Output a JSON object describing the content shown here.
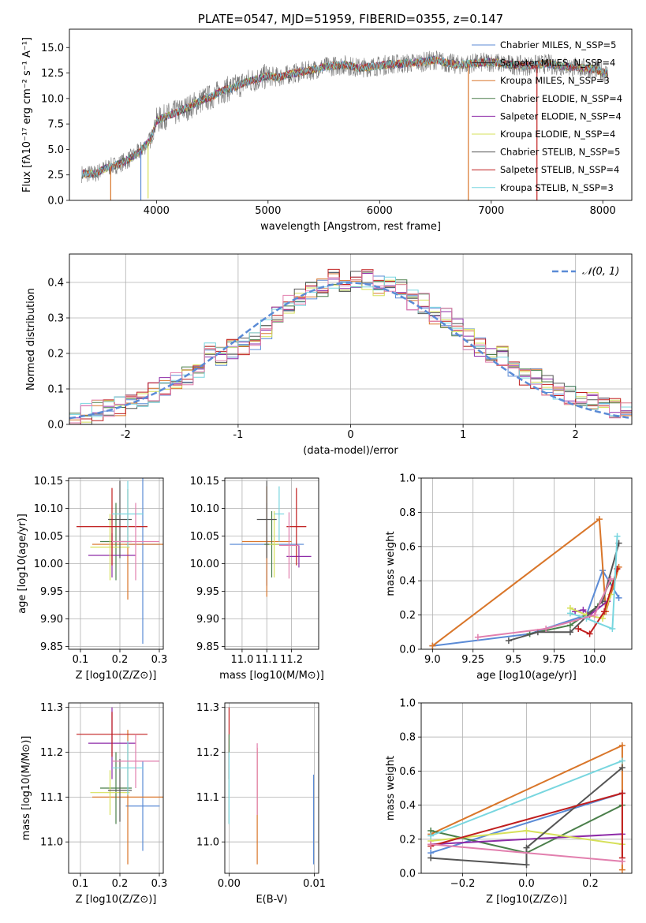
{
  "chart_data": [
    {
      "id": "spectrum",
      "type": "line",
      "title": "PLATE=0547, MJD=51959, FIBERID=0355, z=0.147",
      "xlabel": "wavelength [Angstrom, rest frame]",
      "ylabel": "Flux [fλ10⁻¹⁷ erg cm⁻² s⁻¹ A⁻¹]",
      "xlim": [
        3220,
        8260
      ],
      "ylim": [
        0,
        16.8
      ],
      "xticks": [
        4000,
        5000,
        6000,
        7000,
        8000
      ],
      "yticks": [
        0.0,
        2.5,
        5.0,
        7.5,
        10.0,
        12.5,
        15.0
      ],
      "legend_position": "upper right",
      "legend": [
        "Chabrier MILES, N_SSP=5",
        "Salpeter MILES, N_SSP=4",
        "Kroupa MILES, N_SSP=3",
        "Chabrier ELODIE, N_SSP=4",
        "Salpeter ELODIE, N_SSP=4",
        "Kroupa ELODIE, N_SSP=4",
        "Chabrier STELIB, N_SSP=5",
        "Salpeter STELIB, N_SSP=4",
        "Kroupa STELIB, N_SSP=3"
      ],
      "colors": [
        "#5b8bd6",
        "#2d2d2d",
        "#d9762a",
        "#4a7f4a",
        "#8e2ca8",
        "#d6e05a",
        "#555555",
        "#c01e1e",
        "#78d6df"
      ],
      "data_color": "#777777",
      "continuum": {
        "x": [
          3330,
          3450,
          3550,
          3650,
          3750,
          3850,
          3950,
          4000,
          4100,
          4200,
          4300,
          4400,
          4500,
          4600,
          4700,
          4800,
          4900,
          5000,
          5100,
          5200,
          5300,
          5400,
          5500,
          5600,
          5700,
          5800,
          5900,
          6000,
          6100,
          6200,
          6300,
          6400,
          6500,
          6600,
          6700,
          6800,
          6900,
          7000,
          7100,
          7200,
          7300,
          7400,
          7500,
          7600,
          7700,
          7800,
          7900,
          8000,
          8050
        ],
        "y": [
          2.6,
          2.6,
          3.2,
          3.5,
          4.0,
          4.8,
          6.0,
          7.8,
          8.3,
          8.7,
          9.2,
          9.8,
          10.2,
          10.8,
          11.1,
          11.6,
          11.9,
          12.2,
          12.1,
          12.4,
          12.6,
          12.8,
          13.1,
          13.2,
          13.3,
          13.0,
          13.1,
          13.2,
          13.4,
          13.4,
          13.5,
          13.6,
          13.8,
          13.5,
          13.3,
          13.4,
          13.5,
          13.6,
          13.4,
          13.3,
          13.2,
          13.3,
          13.4,
          13.2,
          13.1,
          13.0,
          12.9,
          12.6,
          12.4
        ]
      },
      "model_dropouts": [
        {
          "x": 3590,
          "y": 0
        },
        {
          "x": 3860,
          "y": 0
        },
        {
          "x": 3925,
          "y": 0.2
        },
        {
          "x": 6795,
          "y": 0
        },
        {
          "x": 7410,
          "y": 0
        }
      ]
    },
    {
      "id": "residuals",
      "type": "step",
      "xlabel": "(data-model)/error",
      "ylabel": "Normed distribution",
      "xlim": [
        -2.5,
        2.5
      ],
      "ylim": [
        0,
        0.48
      ],
      "xticks": [
        -2,
        -1,
        0,
        1,
        2
      ],
      "yticks": [
        0.0,
        0.1,
        0.2,
        0.3,
        0.4
      ],
      "legend": [
        "𝒩(0, 1)"
      ],
      "legend_position": "upper right",
      "gaussian_color": "#5b8bd6",
      "bin_edges": [
        -2.5,
        -2.4,
        -2.3,
        -2.2,
        -2.1,
        -2.0,
        -1.9,
        -1.8,
        -1.7,
        -1.6,
        -1.5,
        -1.4,
        -1.3,
        -1.2,
        -1.1,
        -1.0,
        -0.9,
        -0.8,
        -0.7,
        -0.6,
        -0.5,
        -0.4,
        -0.3,
        -0.2,
        -0.1,
        0.0,
        0.1,
        0.2,
        0.3,
        0.4,
        0.5,
        0.6,
        0.7,
        0.8,
        0.9,
        1.0,
        1.1,
        1.2,
        1.3,
        1.4,
        1.5,
        1.6,
        1.7,
        1.8,
        1.9,
        2.0,
        2.1,
        2.2,
        2.3,
        2.4,
        2.5
      ],
      "base_heights": [
        0.025,
        0.03,
        0.04,
        0.045,
        0.05,
        0.06,
        0.08,
        0.09,
        0.11,
        0.12,
        0.14,
        0.16,
        0.21,
        0.19,
        0.21,
        0.22,
        0.24,
        0.27,
        0.31,
        0.34,
        0.36,
        0.38,
        0.39,
        0.41,
        0.4,
        0.41,
        0.41,
        0.39,
        0.4,
        0.38,
        0.35,
        0.34,
        0.31,
        0.3,
        0.27,
        0.24,
        0.22,
        0.2,
        0.19,
        0.16,
        0.14,
        0.13,
        0.11,
        0.1,
        0.08,
        0.07,
        0.06,
        0.05,
        0.045,
        0.04
      ],
      "series_colors": [
        "#5b8bd6",
        "#d9762a",
        "#4a7f4a",
        "#8e2ca8",
        "#d6e05a",
        "#555555",
        "#c01e1e",
        "#78d6df",
        "#e27fae"
      ]
    },
    {
      "id": "age-vs-Z",
      "type": "errorbar",
      "xlabel": "Z [log10(Z/Z⊙)]",
      "ylabel": "age  [log10(age/yr)]",
      "xlim": [
        0.07,
        0.31
      ],
      "ylim": [
        9.845,
        10.155
      ],
      "xticks": [
        0.1,
        0.2,
        0.3
      ],
      "yticks": [
        9.85,
        9.9,
        9.95,
        10.0,
        10.05,
        10.1,
        10.15
      ],
      "points": [
        {
          "x": 0.258,
          "y": 10.035,
          "xerr": 0.043,
          "yerr": 0.18,
          "color": "#5b8bd6"
        },
        {
          "x": 0.22,
          "y": 10.035,
          "xerr": 0.09,
          "yerr": 0.1,
          "color": "#d9762a"
        },
        {
          "x": 0.19,
          "y": 10.04,
          "xerr": 0.04,
          "yerr": 0.07,
          "color": "#4a7f4a"
        },
        {
          "x": 0.18,
          "y": 10.015,
          "xerr": 0.06,
          "yerr": 0.04,
          "color": "#8e2ca8"
        },
        {
          "x": 0.175,
          "y": 10.03,
          "xerr": 0.05,
          "yerr": 0.06,
          "color": "#d6e05a"
        },
        {
          "x": 0.2,
          "y": 10.08,
          "xerr": 0.03,
          "yerr": 0.07,
          "color": "#555555"
        },
        {
          "x": 0.18,
          "y": 10.067,
          "xerr": 0.09,
          "yerr": 0.07,
          "color": "#c01e1e"
        },
        {
          "x": 0.22,
          "y": 10.09,
          "xerr": 0.04,
          "yerr": 0.06,
          "color": "#78d6df"
        },
        {
          "x": 0.24,
          "y": 10.04,
          "xerr": 0.06,
          "yerr": 0.07,
          "color": "#e27fae"
        }
      ]
    },
    {
      "id": "age-vs-mass",
      "type": "errorbar",
      "xlabel": "mass [log10(M/M⊙)]",
      "ylabel": "",
      "xlim": [
        10.93,
        11.31
      ],
      "ylim": [
        9.845,
        10.155
      ],
      "xticks": [
        11.0,
        11.1,
        11.2
      ],
      "yticks": [
        9.85,
        9.9,
        9.95,
        10.0,
        10.05,
        10.1,
        10.15
      ],
      "points": [
        {
          "x": 11.1,
          "y": 10.035,
          "xerr": 0.15,
          "yerr": 0.075,
          "color": "#5b8bd6"
        },
        {
          "x": 11.1,
          "y": 10.04,
          "xerr": 0.1,
          "yerr": 0.1,
          "color": "#d9762a"
        },
        {
          "x": 11.12,
          "y": 10.035,
          "xerr": 0.03,
          "yerr": 0.06,
          "color": "#4a7f4a"
        },
        {
          "x": 11.23,
          "y": 10.013,
          "xerr": 0.05,
          "yerr": 0.02,
          "color": "#8e2ca8"
        },
        {
          "x": 11.13,
          "y": 10.035,
          "xerr": 0.02,
          "yerr": 0.06,
          "color": "#d6e05a"
        },
        {
          "x": 11.1,
          "y": 10.08,
          "xerr": 0.04,
          "yerr": 0.07,
          "color": "#555555"
        },
        {
          "x": 11.22,
          "y": 10.067,
          "xerr": 0.04,
          "yerr": 0.07,
          "color": "#c01e1e"
        },
        {
          "x": 11.15,
          "y": 10.09,
          "xerr": 0.02,
          "yerr": 0.05,
          "color": "#78d6df"
        },
        {
          "x": 11.19,
          "y": 10.033,
          "xerr": 0.04,
          "yerr": 0.06,
          "color": "#e27fae"
        }
      ]
    },
    {
      "id": "massweight-vs-age",
      "type": "line",
      "xlabel": "age  [log10(age/yr)]",
      "ylabel": "mass weight",
      "xlim": [
        8.93,
        10.23
      ],
      "ylim": [
        0.0,
        1.0
      ],
      "xticks": [
        9.0,
        9.25,
        9.5,
        9.75,
        10.0
      ],
      "yticks": [
        0.0,
        0.2,
        0.4,
        0.6,
        0.8,
        1.0
      ],
      "series": [
        {
          "color": "#5b8bd6",
          "x": [
            9.0,
            9.6,
            9.95,
            10.05,
            10.15
          ],
          "y": [
            0.02,
            0.09,
            0.2,
            0.46,
            0.3
          ]
        },
        {
          "color": "#d9762a",
          "x": [
            9.0,
            10.03,
            10.07,
            10.15
          ],
          "y": [
            0.02,
            0.76,
            0.22,
            0.48
          ]
        },
        {
          "color": "#4a7f4a",
          "x": [
            9.6,
            9.85,
            10.02,
            10.1
          ],
          "y": [
            0.09,
            0.14,
            0.25,
            0.4
          ]
        },
        {
          "color": "#8e2ca8",
          "x": [
            9.88,
            9.93,
            9.97,
            10.08
          ],
          "y": [
            0.22,
            0.23,
            0.2,
            0.28
          ]
        },
        {
          "color": "#d6e05a",
          "x": [
            9.85,
            9.95,
            10.05,
            10.1
          ],
          "y": [
            0.24,
            0.2,
            0.18,
            0.32
          ]
        },
        {
          "color": "#555555",
          "x": [
            9.47,
            9.65,
            9.85,
            10.05,
            10.15
          ],
          "y": [
            0.05,
            0.1,
            0.1,
            0.28,
            0.62
          ]
        },
        {
          "color": "#c01e1e",
          "x": [
            9.9,
            9.97,
            10.06,
            10.14
          ],
          "y": [
            0.12,
            0.09,
            0.22,
            0.47
          ]
        },
        {
          "color": "#78d6df",
          "x": [
            9.85,
            9.95,
            10.11,
            10.14
          ],
          "y": [
            0.21,
            0.18,
            0.12,
            0.66
          ]
        },
        {
          "color": "#e27fae",
          "x": [
            9.28,
            9.7,
            10.0,
            10.1
          ],
          "y": [
            0.07,
            0.12,
            0.2,
            0.41
          ]
        }
      ]
    },
    {
      "id": "mass-vs-Z",
      "type": "errorbar",
      "xlabel": "Z [log10(Z/Z⊙)]",
      "ylabel": "mass [log10(M/M⊙)]",
      "xlim": [
        0.07,
        0.31
      ],
      "ylim": [
        10.93,
        11.31
      ],
      "xticks": [
        0.1,
        0.2,
        0.3
      ],
      "yticks": [
        11.0,
        11.1,
        11.2,
        11.3
      ],
      "points": [
        {
          "x": 0.258,
          "y": 11.08,
          "xerr": 0.043,
          "yerr": 0.1,
          "color": "#5b8bd6"
        },
        {
          "x": 0.22,
          "y": 11.1,
          "xerr": 0.09,
          "yerr": 0.15,
          "color": "#d9762a"
        },
        {
          "x": 0.19,
          "y": 11.12,
          "xerr": 0.04,
          "yerr": 0.08,
          "color": "#4a7f4a"
        },
        {
          "x": 0.18,
          "y": 11.22,
          "xerr": 0.06,
          "yerr": 0.08,
          "color": "#8e2ca8"
        },
        {
          "x": 0.175,
          "y": 11.11,
          "xerr": 0.05,
          "yerr": 0.05,
          "color": "#d6e05a"
        },
        {
          "x": 0.2,
          "y": 11.115,
          "xerr": 0.03,
          "yerr": 0.07,
          "color": "#555555"
        },
        {
          "x": 0.18,
          "y": 11.24,
          "xerr": 0.09,
          "yerr": 0.05,
          "color": "#c01e1e"
        },
        {
          "x": 0.22,
          "y": 11.165,
          "xerr": 0.04,
          "yerr": 0.06,
          "color": "#78d6df"
        },
        {
          "x": 0.24,
          "y": 11.18,
          "xerr": 0.06,
          "yerr": 0.06,
          "color": "#e27fae"
        }
      ]
    },
    {
      "id": "mass-vs-EBV",
      "type": "errorbar",
      "xlabel": "E(B-V)",
      "ylabel": "",
      "xlim": [
        -0.0005,
        0.0105
      ],
      "ylim": [
        10.93,
        11.31
      ],
      "xticks": [
        0.0,
        0.01
      ],
      "yticks": [
        11.0,
        11.1,
        11.2,
        11.3
      ],
      "points": [
        {
          "x": 0.0,
          "y": 11.22,
          "yerr": 0.08,
          "color": "#c01e1e"
        },
        {
          "x": 0.0,
          "y": 11.14,
          "yerr": 0.1,
          "color": "#4a7f4a"
        },
        {
          "x": 0.0,
          "y": 11.12,
          "yerr": 0.08,
          "color": "#78d6df"
        },
        {
          "x": 0.0033,
          "y": 11.08,
          "yerr": 0.13,
          "color": "#d9762a"
        },
        {
          "x": 0.0033,
          "y": 11.14,
          "yerr": 0.08,
          "color": "#e27fae"
        },
        {
          "x": 0.0099,
          "y": 11.05,
          "yerr": 0.1,
          "color": "#5b8bd6"
        }
      ]
    },
    {
      "id": "massweight-vs-Z",
      "type": "line",
      "xlabel": "Z [log10(Z/Z⊙)]",
      "ylabel": "mass weight",
      "xlim": [
        -0.33,
        0.33
      ],
      "ylim": [
        0.0,
        1.0
      ],
      "xticks": [
        -0.2,
        0.0,
        0.2
      ],
      "yticks": [
        0.0,
        0.2,
        0.4,
        0.6,
        0.8,
        1.0
      ],
      "series": [
        {
          "color": "#5b8bd6",
          "x": [
            -0.3,
            0.3
          ],
          "y": [
            0.12,
            0.47
          ]
        },
        {
          "color": "#d9762a",
          "x": [
            -0.3,
            0.3,
            0.3
          ],
          "y": [
            0.23,
            0.75,
            0.02
          ]
        },
        {
          "color": "#4a7f4a",
          "x": [
            -0.3,
            0.0,
            0.3
          ],
          "y": [
            0.25,
            0.12,
            0.4
          ]
        },
        {
          "color": "#8e2ca8",
          "x": [
            -0.3,
            0.3
          ],
          "y": [
            0.17,
            0.23
          ]
        },
        {
          "color": "#d6e05a",
          "x": [
            -0.3,
            0.0,
            0.3
          ],
          "y": [
            0.19,
            0.25,
            0.17
          ]
        },
        {
          "color": "#555555",
          "x": [
            -0.3,
            0.0,
            0.0,
            0.3
          ],
          "y": [
            0.09,
            0.05,
            0.15,
            0.62
          ]
        },
        {
          "color": "#c01e1e",
          "x": [
            -0.3,
            0.3,
            0.3
          ],
          "y": [
            0.16,
            0.47,
            0.09
          ]
        },
        {
          "color": "#78d6df",
          "x": [
            -0.3,
            0.3
          ],
          "y": [
            0.22,
            0.66
          ]
        },
        {
          "color": "#e27fae",
          "x": [
            -0.3,
            0.3
          ],
          "y": [
            0.17,
            0.07
          ]
        }
      ]
    }
  ]
}
